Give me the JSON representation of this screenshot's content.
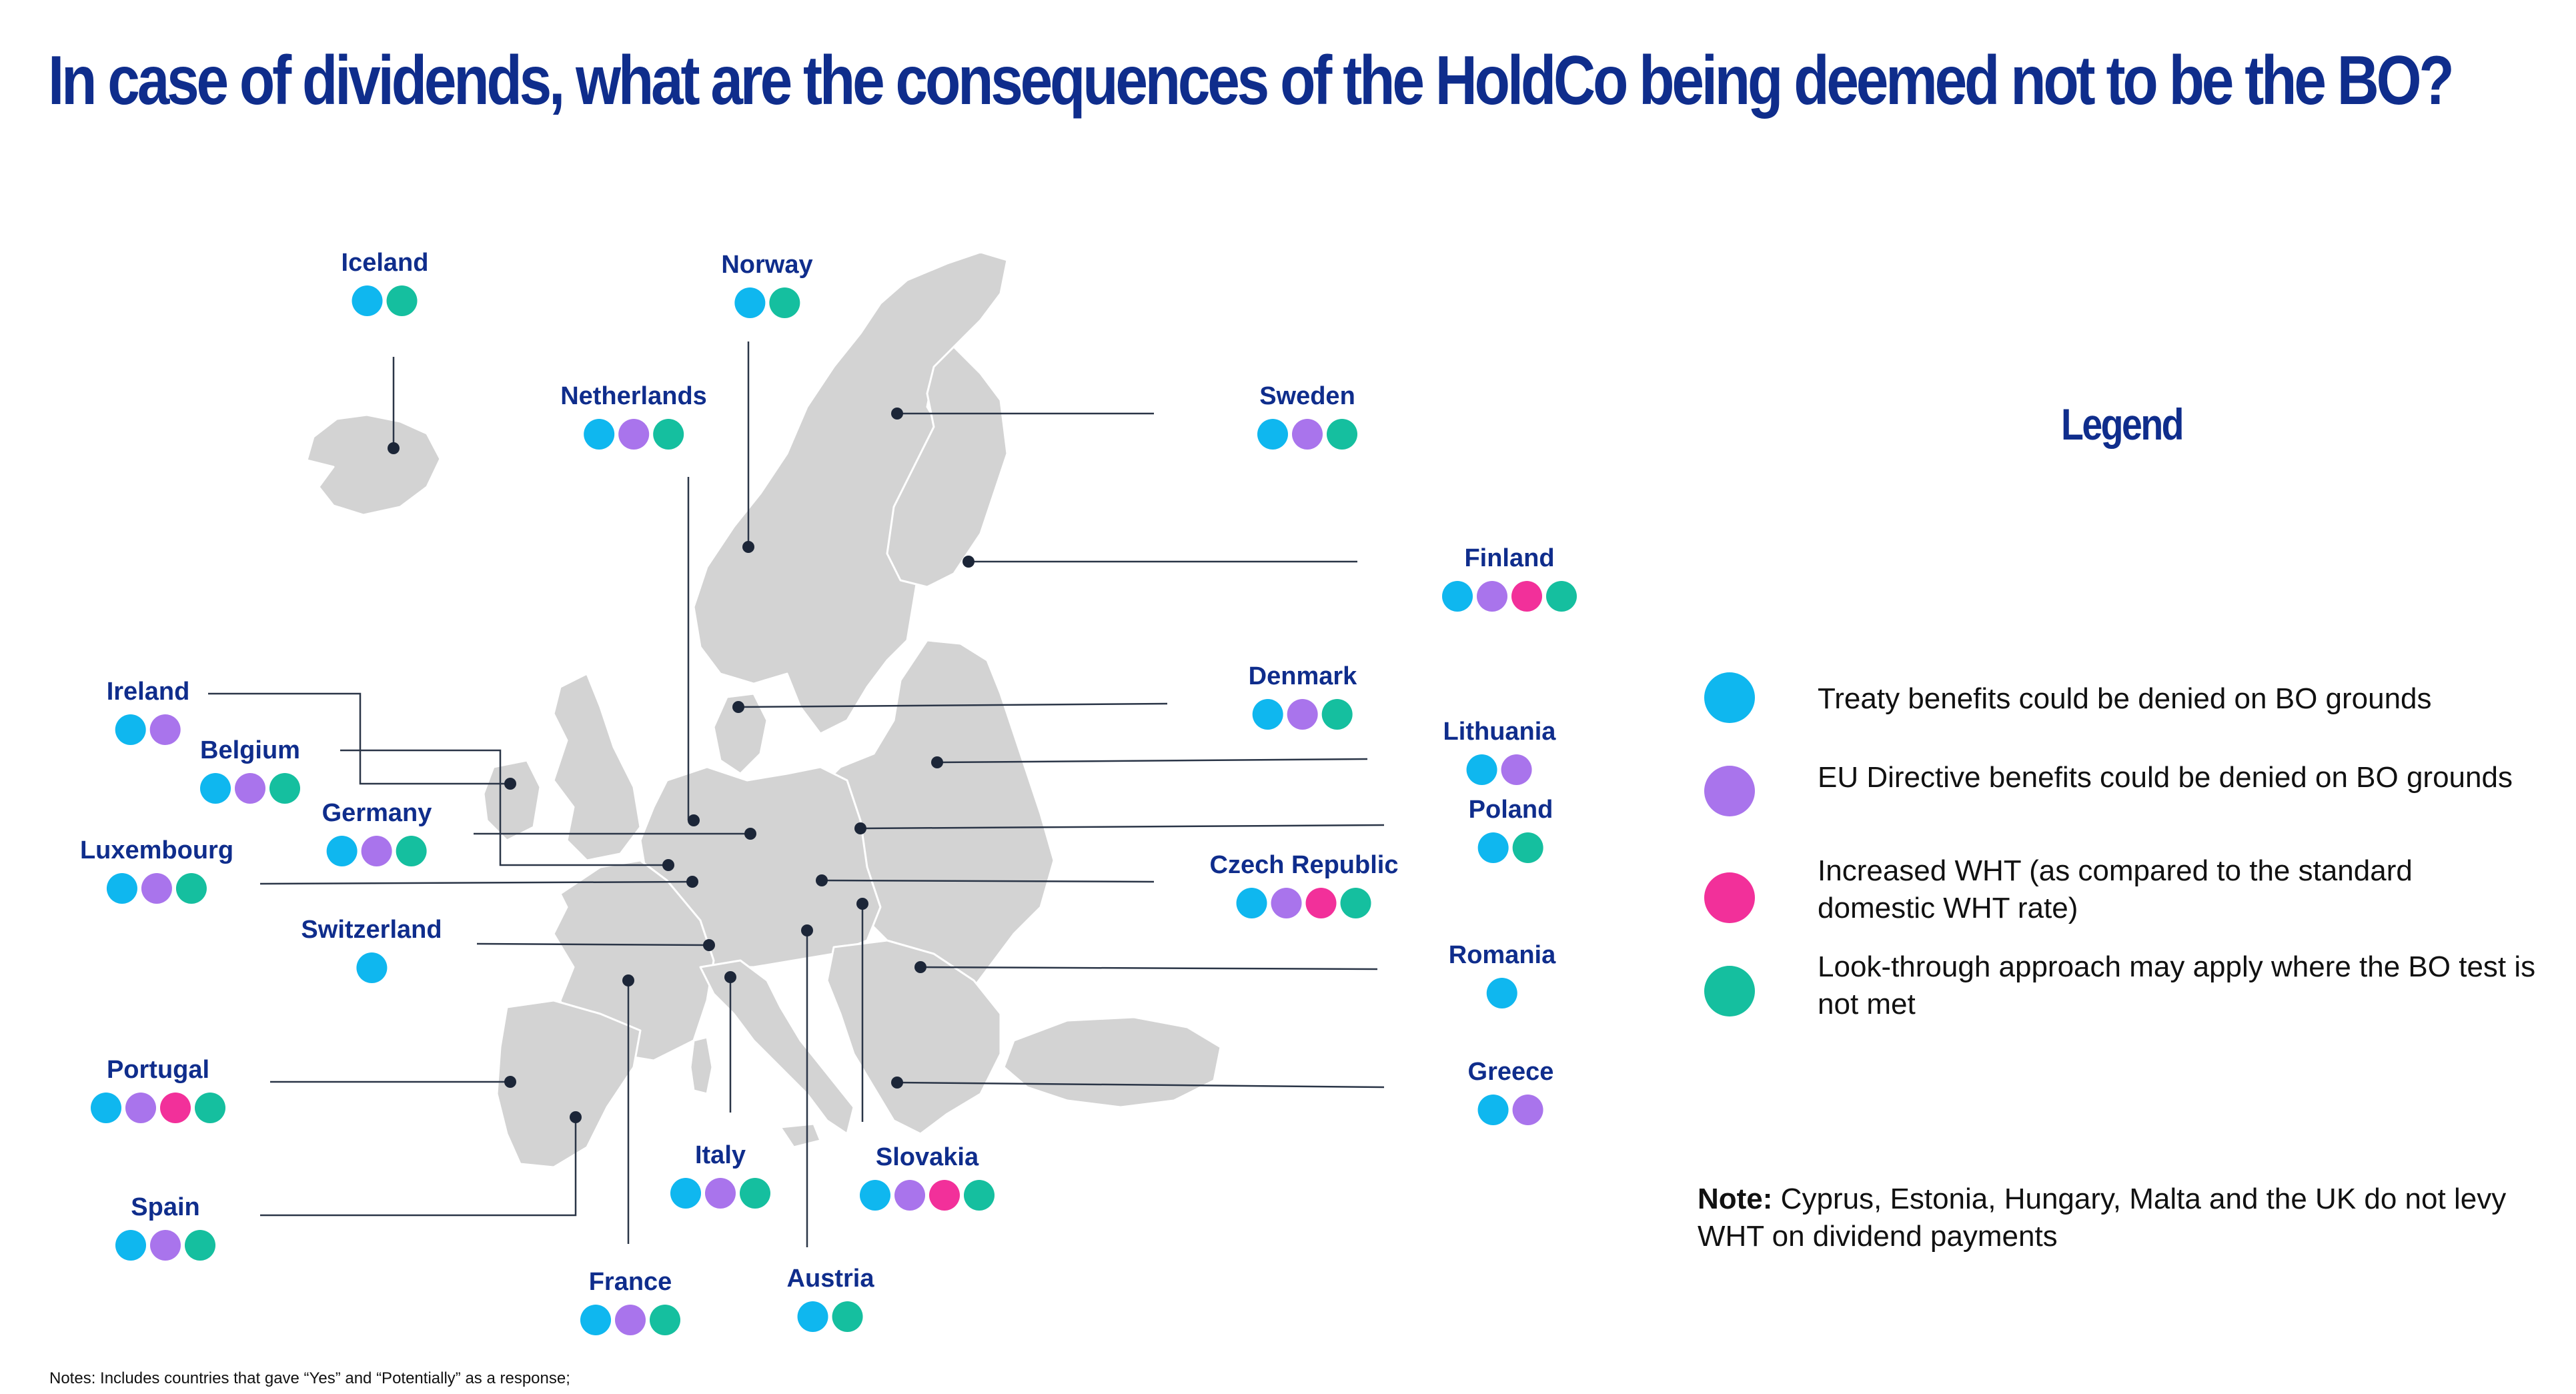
{
  "title": "In case of dividends, what are the consequences of the HoldCo being deemed not to be the BO?",
  "colors": {
    "title": "#0f2d8c",
    "treaty": "#0fb7ef",
    "directive": "#a974ec",
    "wht": "#f2309a",
    "lookthrough": "#15bf9f",
    "map": "#d3d3d3",
    "leader": "#2a3547"
  },
  "countries": [
    {
      "name": "Iceland",
      "markers": [
        "treaty",
        "lookthrough"
      ]
    },
    {
      "name": "Norway",
      "markers": [
        "treaty",
        "lookthrough"
      ]
    },
    {
      "name": "Netherlands",
      "markers": [
        "treaty",
        "directive",
        "lookthrough"
      ]
    },
    {
      "name": "Sweden",
      "markers": [
        "treaty",
        "directive",
        "lookthrough"
      ]
    },
    {
      "name": "Finland",
      "markers": [
        "treaty",
        "directive",
        "wht",
        "lookthrough"
      ]
    },
    {
      "name": "Ireland",
      "markers": [
        "treaty",
        "directive"
      ]
    },
    {
      "name": "Belgium",
      "markers": [
        "treaty",
        "directive",
        "lookthrough"
      ]
    },
    {
      "name": "Denmark",
      "markers": [
        "treaty",
        "directive",
        "lookthrough"
      ]
    },
    {
      "name": "Lithuania",
      "markers": [
        "treaty",
        "directive"
      ]
    },
    {
      "name": "Germany",
      "markers": [
        "treaty",
        "directive",
        "lookthrough"
      ]
    },
    {
      "name": "Poland",
      "markers": [
        "treaty",
        "lookthrough"
      ]
    },
    {
      "name": "Luxembourg",
      "markers": [
        "treaty",
        "directive",
        "lookthrough"
      ]
    },
    {
      "name": "Czech Republic",
      "markers": [
        "treaty",
        "directive",
        "wht",
        "lookthrough"
      ]
    },
    {
      "name": "Switzerland",
      "markers": [
        "treaty"
      ]
    },
    {
      "name": "Romania",
      "markers": [
        "treaty"
      ]
    },
    {
      "name": "Portugal",
      "markers": [
        "treaty",
        "directive",
        "wht",
        "lookthrough"
      ]
    },
    {
      "name": "Greece",
      "markers": [
        "treaty",
        "directive"
      ]
    },
    {
      "name": "Italy",
      "markers": [
        "treaty",
        "directive",
        "lookthrough"
      ]
    },
    {
      "name": "Slovakia",
      "markers": [
        "treaty",
        "directive",
        "wht",
        "lookthrough"
      ]
    },
    {
      "name": "Spain",
      "markers": [
        "treaty",
        "directive",
        "lookthrough"
      ]
    },
    {
      "name": "France",
      "markers": [
        "treaty",
        "directive",
        "lookthrough"
      ]
    },
    {
      "name": "Austria",
      "markers": [
        "treaty",
        "lookthrough"
      ]
    }
  ],
  "legend": {
    "title": "Legend",
    "items": [
      {
        "key": "treaty",
        "label": "Treaty benefits could be denied on BO grounds"
      },
      {
        "key": "directive",
        "label": "EU Directive benefits could be denied on BO grounds"
      },
      {
        "key": "wht",
        "label": "Increased WHT (as compared to the standard domestic WHT rate)"
      },
      {
        "key": "lookthrough",
        "label": "Look-through approach may apply where the BO test is not met"
      }
    ]
  },
  "note": {
    "label": "Note:",
    "text": "Cyprus, Estonia, Hungary, Malta and the UK do not levy WHT on dividend payments"
  },
  "footnote": "Notes:  Includes countries that gave “Yes” and “Potentially” as a response;"
}
